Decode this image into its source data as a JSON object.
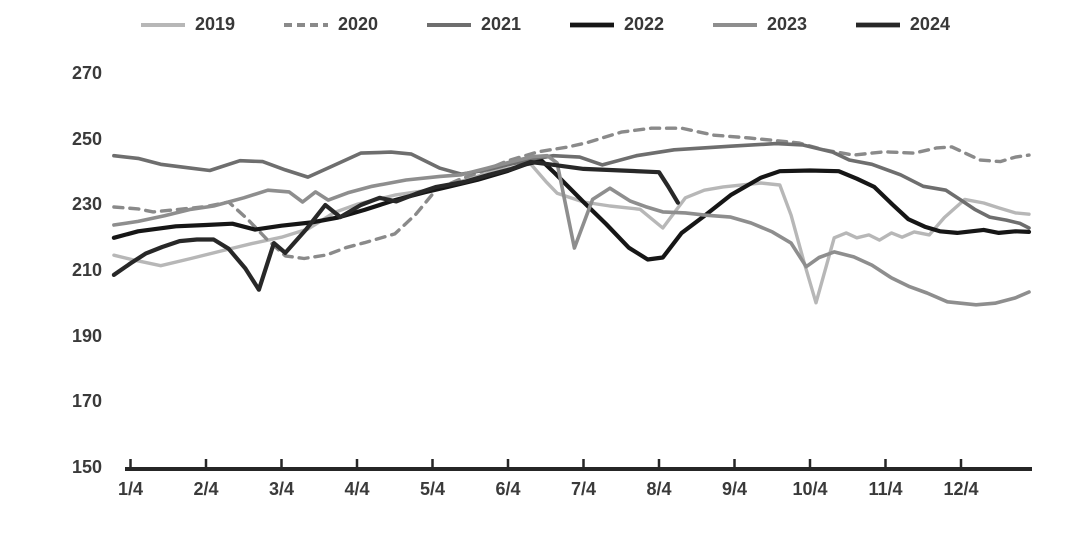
{
  "page": {
    "background": "#ffffff",
    "text_color": "#3a3a3a",
    "axis_line_color": "#262626"
  },
  "chart_data": {
    "type": "line",
    "title": "",
    "xlabel": "",
    "ylabel": "",
    "grid": "off",
    "legend_position": "top",
    "x_axis": {
      "tick_labels": [
        "1/4",
        "2/4",
        "3/4",
        "4/4",
        "5/4",
        "6/4",
        "7/4",
        "8/4",
        "9/4",
        "10/4",
        "11/4",
        "12/4"
      ],
      "unit": "month/day of year",
      "range_months": [
        0.78,
        12.94
      ]
    },
    "y_axis": {
      "tick_labels": [
        "270",
        "250",
        "230",
        "210",
        "190",
        "170",
        "150"
      ],
      "ticks": [
        270,
        250,
        230,
        210,
        190,
        170,
        150
      ],
      "range": [
        150,
        270
      ]
    },
    "series": [
      {
        "name": "2019",
        "color": "#b7b7b7",
        "width": 3.4,
        "dash": "",
        "points": [
          [
            0.78,
            214.5
          ],
          [
            1.05,
            213
          ],
          [
            1.4,
            211.3
          ],
          [
            1.8,
            213.5
          ],
          [
            2.2,
            215.8
          ],
          [
            2.6,
            218
          ],
          [
            3.0,
            220
          ],
          [
            3.35,
            222.5
          ],
          [
            3.7,
            227.5
          ],
          [
            4.0,
            230
          ],
          [
            4.5,
            232.8
          ],
          [
            5.0,
            234.5
          ],
          [
            5.45,
            237.5
          ],
          [
            5.8,
            240
          ],
          [
            6.1,
            241.3
          ],
          [
            6.3,
            242.3
          ],
          [
            6.5,
            237
          ],
          [
            6.65,
            233.4
          ],
          [
            7.0,
            230.7
          ],
          [
            7.35,
            229.5
          ],
          [
            7.75,
            228.5
          ],
          [
            8.05,
            222.8
          ],
          [
            8.35,
            232
          ],
          [
            8.6,
            234.3
          ],
          [
            8.85,
            235.3
          ],
          [
            9.35,
            236.5
          ],
          [
            9.6,
            235.9
          ],
          [
            9.75,
            226.7
          ],
          [
            9.92,
            212.4
          ],
          [
            10.08,
            200
          ],
          [
            10.32,
            219.8
          ],
          [
            10.48,
            221.3
          ],
          [
            10.62,
            219.8
          ],
          [
            10.78,
            220.7
          ],
          [
            10.92,
            219.1
          ],
          [
            11.08,
            221.3
          ],
          [
            11.22,
            220
          ],
          [
            11.38,
            221.6
          ],
          [
            11.58,
            220.7
          ],
          [
            11.78,
            226
          ],
          [
            12.05,
            231.5
          ],
          [
            12.3,
            230.4
          ],
          [
            12.5,
            228.9
          ],
          [
            12.72,
            227.4
          ],
          [
            12.9,
            227
          ]
        ]
      },
      {
        "name": "2020",
        "color": "#8a8a8a",
        "width": 3.4,
        "dash": "9,7",
        "points": [
          [
            0.78,
            229.2
          ],
          [
            1.1,
            228.6
          ],
          [
            1.3,
            227.7
          ],
          [
            1.65,
            228.5
          ],
          [
            2.0,
            229.3
          ],
          [
            2.3,
            230.7
          ],
          [
            2.55,
            225.5
          ],
          [
            2.8,
            219.5
          ],
          [
            3.05,
            214.3
          ],
          [
            3.3,
            213.5
          ],
          [
            3.6,
            214.6
          ],
          [
            3.85,
            216.8
          ],
          [
            4.1,
            218.3
          ],
          [
            4.5,
            221
          ],
          [
            4.78,
            227
          ],
          [
            5.05,
            234.5
          ],
          [
            5.35,
            237.5
          ],
          [
            5.65,
            240
          ],
          [
            6.0,
            243.3
          ],
          [
            6.4,
            246
          ],
          [
            6.8,
            247.5
          ],
          [
            7.05,
            248.8
          ],
          [
            7.5,
            252
          ],
          [
            7.9,
            253.2
          ],
          [
            8.3,
            253.2
          ],
          [
            8.72,
            251.1
          ],
          [
            9.2,
            250.2
          ],
          [
            9.85,
            248.7
          ],
          [
            10.18,
            246.6
          ],
          [
            10.58,
            245
          ],
          [
            10.98,
            246
          ],
          [
            11.38,
            245.6
          ],
          [
            11.68,
            247.2
          ],
          [
            11.88,
            247.5
          ],
          [
            12.25,
            243.5
          ],
          [
            12.52,
            243
          ],
          [
            12.72,
            244.4
          ],
          [
            12.9,
            245
          ]
        ]
      },
      {
        "name": "2021",
        "color": "#6e6e6e",
        "width": 3.6,
        "dash": "",
        "points": [
          [
            0.78,
            244.8
          ],
          [
            1.1,
            244
          ],
          [
            1.4,
            242.2
          ],
          [
            1.7,
            241.3
          ],
          [
            2.05,
            240.3
          ],
          [
            2.45,
            243.3
          ],
          [
            2.75,
            243
          ],
          [
            3.05,
            240.5
          ],
          [
            3.35,
            238.3
          ],
          [
            3.65,
            241.4
          ],
          [
            4.05,
            245.6
          ],
          [
            4.45,
            245.9
          ],
          [
            4.72,
            245.3
          ],
          [
            5.1,
            241
          ],
          [
            5.38,
            239.2
          ],
          [
            5.72,
            240.5
          ],
          [
            6.05,
            242.3
          ],
          [
            6.35,
            243.8
          ],
          [
            6.6,
            244.8
          ],
          [
            6.95,
            244.4
          ],
          [
            7.25,
            242
          ],
          [
            7.7,
            244.8
          ],
          [
            8.2,
            246.6
          ],
          [
            8.95,
            247.7
          ],
          [
            9.55,
            248.5
          ],
          [
            9.9,
            248.1
          ],
          [
            10.3,
            245.9
          ],
          [
            10.52,
            243.5
          ],
          [
            10.82,
            242.2
          ],
          [
            11.2,
            239
          ],
          [
            11.5,
            235.5
          ],
          [
            11.8,
            234.3
          ],
          [
            12.0,
            231.3
          ],
          [
            12.18,
            228.5
          ],
          [
            12.38,
            226.1
          ],
          [
            12.6,
            225.2
          ],
          [
            12.78,
            224.2
          ],
          [
            12.9,
            222.8
          ]
        ]
      },
      {
        "name": "2022",
        "color": "#161616",
        "width": 4.2,
        "dash": "",
        "points": [
          [
            0.78,
            219.8
          ],
          [
            1.1,
            221.8
          ],
          [
            1.6,
            223.3
          ],
          [
            2.0,
            223.7
          ],
          [
            2.35,
            224.1
          ],
          [
            2.65,
            222.3
          ],
          [
            3.0,
            223.5
          ],
          [
            3.4,
            224.5
          ],
          [
            3.75,
            226
          ],
          [
            4.1,
            228.3
          ],
          [
            4.5,
            231.3
          ],
          [
            4.9,
            233.7
          ],
          [
            5.2,
            235.3
          ],
          [
            5.6,
            237.5
          ],
          [
            6.0,
            240.2
          ],
          [
            6.25,
            242.3
          ],
          [
            6.45,
            243.2
          ],
          [
            6.62,
            239.5
          ],
          [
            7.0,
            230.7
          ],
          [
            7.3,
            224
          ],
          [
            7.6,
            216.8
          ],
          [
            7.85,
            213.2
          ],
          [
            8.05,
            213.8
          ],
          [
            8.3,
            221.3
          ],
          [
            8.58,
            226.1
          ],
          [
            8.95,
            232.8
          ],
          [
            9.35,
            238.1
          ],
          [
            9.6,
            240.1
          ],
          [
            10.0,
            240.3
          ],
          [
            10.38,
            240.1
          ],
          [
            10.62,
            237.8
          ],
          [
            10.85,
            235.3
          ],
          [
            11.1,
            229.8
          ],
          [
            11.3,
            225.5
          ],
          [
            11.52,
            223.2
          ],
          [
            11.72,
            221.8
          ],
          [
            11.95,
            221.3
          ],
          [
            12.3,
            222.2
          ],
          [
            12.5,
            221.3
          ],
          [
            12.72,
            221.8
          ],
          [
            12.9,
            221.6
          ]
        ]
      },
      {
        "name": "2023",
        "color": "#8e8e8e",
        "width": 3.6,
        "dash": "",
        "points": [
          [
            0.78,
            223.7
          ],
          [
            1.1,
            224.8
          ],
          [
            1.45,
            226.5
          ],
          [
            1.8,
            228.5
          ],
          [
            2.1,
            229.5
          ],
          [
            2.5,
            232
          ],
          [
            2.82,
            234.3
          ],
          [
            3.1,
            233.8
          ],
          [
            3.28,
            230.7
          ],
          [
            3.45,
            233.8
          ],
          [
            3.62,
            231.3
          ],
          [
            3.88,
            233.5
          ],
          [
            4.2,
            235.5
          ],
          [
            4.65,
            237.4
          ],
          [
            5.1,
            238.5
          ],
          [
            5.38,
            239
          ],
          [
            5.72,
            241
          ],
          [
            6.05,
            243
          ],
          [
            6.32,
            244.5
          ],
          [
            6.52,
            244.8
          ],
          [
            6.65,
            242.6
          ],
          [
            6.88,
            216.7
          ],
          [
            7.12,
            231.5
          ],
          [
            7.35,
            234.9
          ],
          [
            7.62,
            231
          ],
          [
            7.82,
            229.3
          ],
          [
            8.05,
            227.7
          ],
          [
            8.35,
            227.4
          ],
          [
            8.62,
            226.7
          ],
          [
            8.95,
            226.1
          ],
          [
            9.22,
            224.3
          ],
          [
            9.5,
            221.6
          ],
          [
            9.75,
            218.2
          ],
          [
            9.95,
            211
          ],
          [
            10.12,
            213.8
          ],
          [
            10.32,
            215.5
          ],
          [
            10.58,
            214
          ],
          [
            10.82,
            211.5
          ],
          [
            11.08,
            207.6
          ],
          [
            11.32,
            204.9
          ],
          [
            11.55,
            203
          ],
          [
            11.82,
            200.3
          ],
          [
            12.2,
            199.4
          ],
          [
            12.45,
            199.9
          ],
          [
            12.72,
            201.5
          ],
          [
            12.9,
            203.3
          ]
        ]
      },
      {
        "name": "2024",
        "color": "#282828",
        "width": 4.2,
        "dash": "",
        "points": [
          [
            0.78,
            208.5
          ],
          [
            1.0,
            212
          ],
          [
            1.2,
            215
          ],
          [
            1.42,
            217
          ],
          [
            1.65,
            218.8
          ],
          [
            1.88,
            219.3
          ],
          [
            2.1,
            219.3
          ],
          [
            2.3,
            216.5
          ],
          [
            2.52,
            210.5
          ],
          [
            2.7,
            204
          ],
          [
            2.9,
            218.2
          ],
          [
            3.05,
            215.2
          ],
          [
            3.32,
            222.2
          ],
          [
            3.58,
            229.8
          ],
          [
            3.78,
            226.1
          ],
          [
            4.05,
            229.8
          ],
          [
            4.3,
            232
          ],
          [
            4.52,
            230.9
          ],
          [
            4.78,
            233.2
          ],
          [
            5.05,
            235.3
          ],
          [
            5.42,
            236.8
          ],
          [
            5.75,
            239
          ],
          [
            6.05,
            240.8
          ],
          [
            6.3,
            242.9
          ],
          [
            6.55,
            242.2
          ],
          [
            7.0,
            240.8
          ],
          [
            7.5,
            240.3
          ],
          [
            8.0,
            239.8
          ],
          [
            8.12,
            235.5
          ],
          [
            8.25,
            230.5
          ]
        ]
      }
    ]
  }
}
